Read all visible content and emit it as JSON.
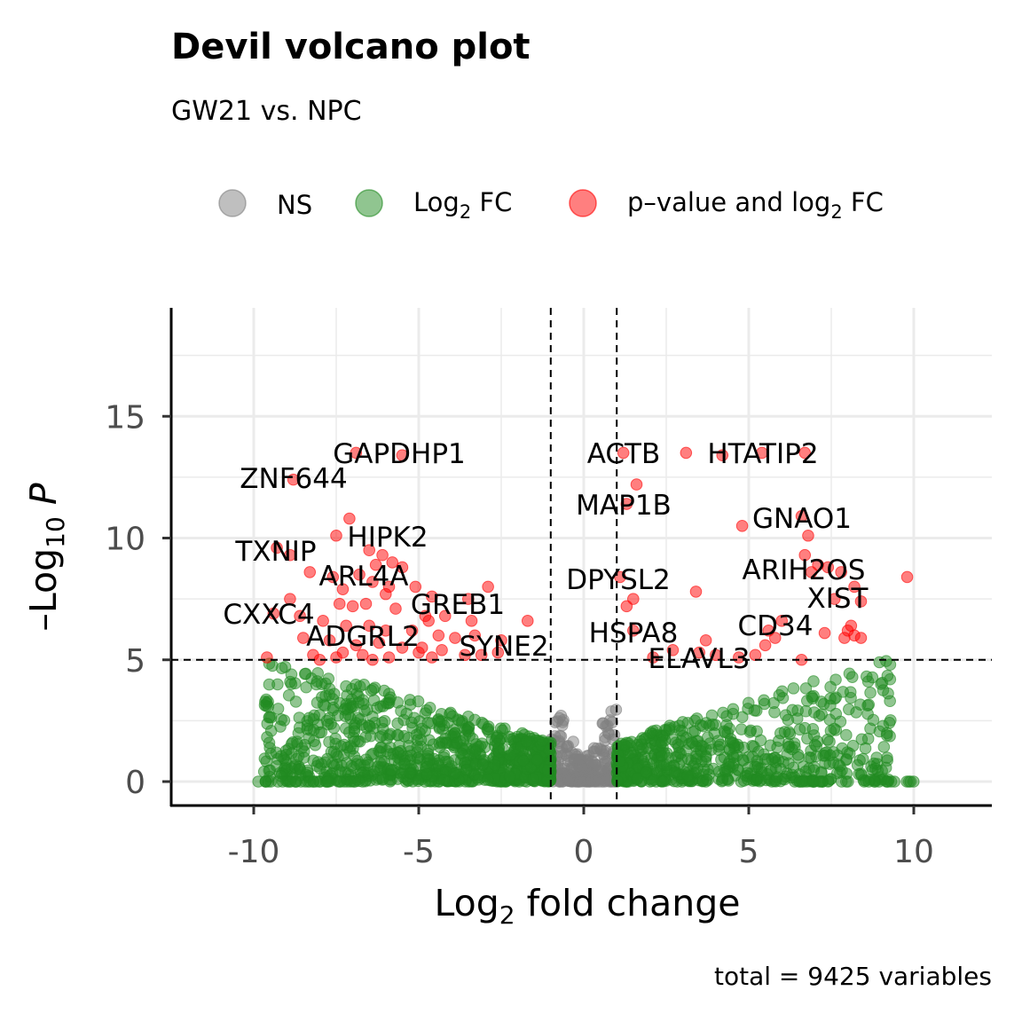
{
  "chart_data": {
    "type": "scatter",
    "title": "Devil volcano plot",
    "subtitle": "GW21 vs. NPC",
    "caption": "total = 9425 variables",
    "xlabel": "Log2 fold change",
    "ylabel": "-Log10 P",
    "xlim": [
      -12.5,
      12.5
    ],
    "ylim": [
      -1,
      19
    ],
    "x_ticks": [
      -10,
      -5,
      0,
      5,
      10
    ],
    "x_tick_labels": [
      "-10",
      "-5",
      "0",
      "5",
      "10"
    ],
    "y_ticks": [
      0,
      5,
      10,
      15
    ],
    "y_tick_labels": [
      "0",
      "5",
      "10",
      "15"
    ],
    "grid": true,
    "legend_position": "top",
    "cutoffs": {
      "log2fc": [
        -1,
        1
      ],
      "neg_log10_p": 5
    },
    "series": [
      {
        "name": "NS",
        "color": "#808080"
      },
      {
        "name": "Log2 FC",
        "color": "#228B22"
      },
      {
        "name": "p-value and log2 FC",
        "color": "#FF0000"
      }
    ],
    "legend_labels": [
      {
        "main": "NS"
      },
      {
        "main": "Log",
        "sub": "2",
        "rest": " FC"
      },
      {
        "main": "p–value and log",
        "sub": "2",
        "rest": " FC"
      }
    ],
    "labeled_genes": [
      {
        "gene": "GAPDHP1",
        "x": -2.1,
        "y": 13.4
      },
      {
        "gene": "ZNF644",
        "x": -8.9,
        "y": 12.5
      },
      {
        "gene": "HIPK2",
        "x": -7.5,
        "y": 10.2
      },
      {
        "gene": "TXNIP",
        "x": -9.3,
        "y": 9.5
      },
      {
        "gene": "ARL4A",
        "x": -7.9,
        "y": 8.2
      },
      {
        "gene": "GREB1",
        "x": -3.8,
        "y": 7.4
      },
      {
        "gene": "CXXC4",
        "x": -9.0,
        "y": 7.0
      },
      {
        "gene": "ADGRL2",
        "x": -5.0,
        "y": 6.4
      },
      {
        "gene": "SYNE2",
        "x": -3.0,
        "y": 5.4
      },
      {
        "gene": "ACTB",
        "x": 1.2,
        "y": 13.4
      },
      {
        "gene": "HTATIP2",
        "x": 6.7,
        "y": 13.4
      },
      {
        "gene": "MAP1B",
        "x": 1.6,
        "y": 12.1
      },
      {
        "gene": "GNAO1",
        "x": 6.8,
        "y": 10.1
      },
      {
        "gene": "DPYSL2",
        "x": 1.1,
        "y": 8.3
      },
      {
        "gene": "ARIH2OS",
        "x": 8.0,
        "y": 8.5
      },
      {
        "gene": "XIST",
        "x": 7.6,
        "y": 7.5
      },
      {
        "gene": "CD34",
        "x": 5.6,
        "y": 6.3
      },
      {
        "gene": "HSPA8",
        "x": 1.5,
        "y": 6.2
      },
      {
        "gene": "ELAVL3",
        "x": 4.5,
        "y": 5.0
      }
    ],
    "significant_points": [
      [
        -6.9,
        13.5
      ],
      [
        -5.5,
        13.4
      ],
      [
        -8.8,
        12.4
      ],
      [
        -7.1,
        10.8
      ],
      [
        -7.5,
        10.1
      ],
      [
        -8.9,
        9.3
      ],
      [
        -9.3,
        9.6
      ],
      [
        -6.1,
        9.3
      ],
      [
        -6.5,
        9.5
      ],
      [
        -5.8,
        9.0
      ],
      [
        -6.3,
        8.9
      ],
      [
        -5.5,
        8.8
      ],
      [
        -8.3,
        8.6
      ],
      [
        -7.6,
        8.4
      ],
      [
        -6.8,
        8.5
      ],
      [
        -6.4,
        8.2
      ],
      [
        -5.9,
        8.0
      ],
      [
        -5.1,
        8.0
      ],
      [
        -7.3,
        7.9
      ],
      [
        -6.0,
        7.7
      ],
      [
        -4.6,
        7.6
      ],
      [
        -3.5,
        7.5
      ],
      [
        -2.9,
        8.0
      ],
      [
        -8.9,
        7.5
      ],
      [
        -7.4,
        7.3
      ],
      [
        -7.0,
        7.2
      ],
      [
        -6.6,
        7.3
      ],
      [
        -5.7,
        7.1
      ],
      [
        -4.8,
        6.8
      ],
      [
        -4.2,
        6.8
      ],
      [
        -3.4,
        6.6
      ],
      [
        -1.7,
        6.6
      ],
      [
        -9.4,
        6.9
      ],
      [
        -8.6,
        6.8
      ],
      [
        -7.9,
        6.6
      ],
      [
        -7.2,
        6.4
      ],
      [
        -6.5,
        6.4
      ],
      [
        -6.0,
        6.2
      ],
      [
        -5.2,
        6.2
      ],
      [
        -4.7,
        6.6
      ],
      [
        -4.4,
        6.0
      ],
      [
        -3.9,
        5.9
      ],
      [
        -3.3,
        6.0
      ],
      [
        -2.5,
        5.8
      ],
      [
        -8.5,
        5.9
      ],
      [
        -7.7,
        5.8
      ],
      [
        -6.9,
        5.6
      ],
      [
        -6.2,
        5.7
      ],
      [
        -5.5,
        5.5
      ],
      [
        -4.9,
        5.5
      ],
      [
        -4.3,
        5.4
      ],
      [
        -3.6,
        5.2
      ],
      [
        -2.6,
        5.3
      ],
      [
        -9.6,
        5.1
      ],
      [
        -8.2,
        5.2
      ],
      [
        -7.5,
        5.1
      ],
      [
        -6.7,
        5.2
      ],
      [
        -5.9,
        5.1
      ],
      [
        -5.0,
        5.3
      ],
      [
        -4.6,
        5.1
      ],
      [
        -3.1,
        5.2
      ],
      [
        -7.3,
        5.3
      ],
      [
        -6.4,
        5.0
      ],
      [
        -8.0,
        5.0
      ],
      [
        1.2,
        13.5
      ],
      [
        3.1,
        13.5
      ],
      [
        4.2,
        13.4
      ],
      [
        5.4,
        13.5
      ],
      [
        6.7,
        13.5
      ],
      [
        1.6,
        12.2
      ],
      [
        1.3,
        11.4
      ],
      [
        4.8,
        10.5
      ],
      [
        6.8,
        10.1
      ],
      [
        6.6,
        10.9
      ],
      [
        6.7,
        9.3
      ],
      [
        7.1,
        8.9
      ],
      [
        7.4,
        8.8
      ],
      [
        7.8,
        8.6
      ],
      [
        6.9,
        8.6
      ],
      [
        8.2,
        8.0
      ],
      [
        9.8,
        8.4
      ],
      [
        1.1,
        8.4
      ],
      [
        3.4,
        7.8
      ],
      [
        1.5,
        7.5
      ],
      [
        1.3,
        7.2
      ],
      [
        7.6,
        7.5
      ],
      [
        8.4,
        7.4
      ],
      [
        6.0,
        6.6
      ],
      [
        5.6,
        6.2
      ],
      [
        7.3,
        6.1
      ],
      [
        8.1,
        6.4
      ],
      [
        8.0,
        6.2
      ],
      [
        8.2,
        6.0
      ],
      [
        1.5,
        6.2
      ],
      [
        3.7,
        5.8
      ],
      [
        5.5,
        5.6
      ],
      [
        5.8,
        5.9
      ],
      [
        7.9,
        5.9
      ],
      [
        8.4,
        5.9
      ],
      [
        2.7,
        5.4
      ],
      [
        3.5,
        5.3
      ],
      [
        4.0,
        5.2
      ],
      [
        5.2,
        5.2
      ],
      [
        6.6,
        5.0
      ],
      [
        4.7,
        5.1
      ],
      [
        2.1,
        5.1
      ]
    ]
  }
}
